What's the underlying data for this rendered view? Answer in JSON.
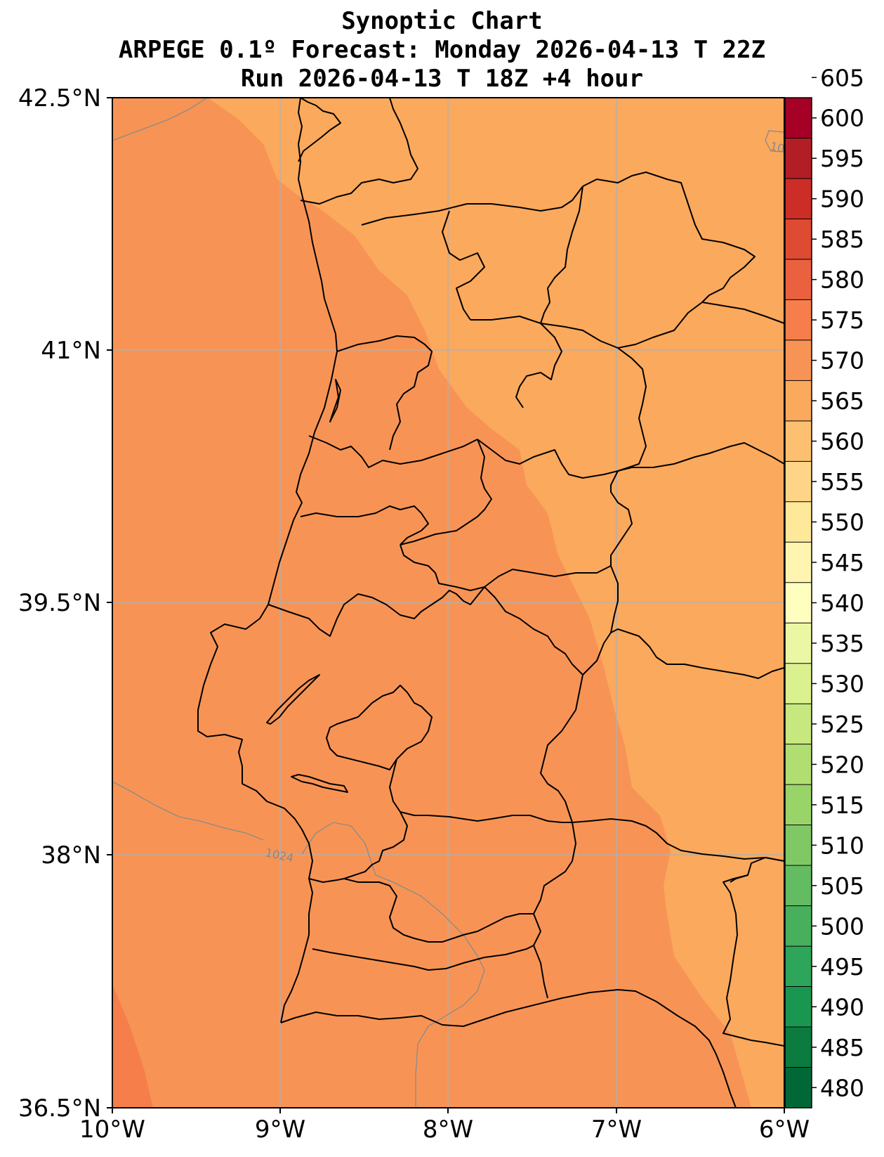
{
  "title": {
    "line1": "Synoptic Chart",
    "line2": "ARPEGE 0.1º Forecast: Monday 2026-04-13 T 22Z",
    "line3": "Run 2026-04-13 T 18Z +4 hour"
  },
  "map": {
    "lon_range": [
      -10,
      -6
    ],
    "lat_range": [
      36.5,
      42.5
    ],
    "lon_ticks": [
      {
        "value": -10,
        "label": "10°W"
      },
      {
        "value": -9,
        "label": "9°W"
      },
      {
        "value": -8,
        "label": "8°W"
      },
      {
        "value": -7,
        "label": "7°W"
      },
      {
        "value": -6,
        "label": "6°W"
      }
    ],
    "lat_ticks": [
      {
        "value": 42.5,
        "label": "42.5°N"
      },
      {
        "value": 41.0,
        "label": "41°N"
      },
      {
        "value": 39.5,
        "label": "39.5°N"
      },
      {
        "value": 38.0,
        "label": "38°N"
      },
      {
        "value": 36.5,
        "label": "36.5°N"
      }
    ],
    "grid": true,
    "isobar_labels": [
      {
        "text": "1024",
        "lon": -9.1,
        "lat": 38.0
      },
      {
        "text": "10",
        "lon": -6.05,
        "lat": 42.33
      }
    ],
    "colors": {
      "band_570_575": "#f79455",
      "band_565_570": "#fba95c",
      "band_575_580": "#f57e4a",
      "border": "#000000",
      "grid": "#b0b0b0",
      "isobar": "#8a8a8a"
    }
  },
  "colorbar": {
    "levels": [
      480,
      485,
      490,
      495,
      500,
      505,
      510,
      515,
      520,
      525,
      530,
      535,
      540,
      545,
      550,
      555,
      560,
      565,
      570,
      575,
      580,
      585,
      590,
      595,
      600,
      605
    ],
    "colors": [
      "#006837",
      "#0b7b3f",
      "#199750",
      "#2da55a",
      "#48b05c",
      "#63bc62",
      "#7fc865",
      "#99d468",
      "#b1de71",
      "#c7e77f",
      "#dbf08f",
      "#ebf7a3",
      "#feffbe",
      "#fff4b0",
      "#fee89a",
      "#fed587",
      "#fdc070",
      "#fba95c",
      "#f79455",
      "#f57e4a",
      "#ea6140",
      "#de4b32",
      "#cc2d27",
      "#b31e26",
      "#a50026"
    ],
    "labels": [
      "480",
      "485",
      "490",
      "495",
      "500",
      "505",
      "510",
      "515",
      "520",
      "525",
      "530",
      "535",
      "540",
      "545",
      "550",
      "555",
      "560",
      "565",
      "570",
      "575",
      "580",
      "585",
      "590",
      "595",
      "600",
      "605"
    ]
  }
}
